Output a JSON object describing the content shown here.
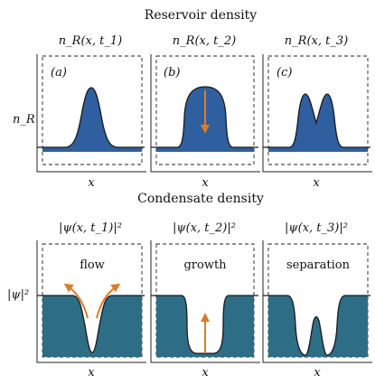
{
  "top_title": "Reservoir density",
  "bottom_title": "Condensate density",
  "reservoir": {
    "ylabel": "n_R",
    "panels": [
      {
        "header": "n_R(x, t_1)",
        "tag": "(a)",
        "xlabel": "x"
      },
      {
        "header": "n_R(x, t_2)",
        "tag": "(b)",
        "xlabel": "x"
      },
      {
        "header": "n_R(x, t_3)",
        "tag": "(c)",
        "xlabel": "x"
      }
    ]
  },
  "condensate": {
    "ylabel": "|ψ|²",
    "panels": [
      {
        "header": "|ψ(x, t_1)|²",
        "label": "flow",
        "xlabel": "x"
      },
      {
        "header": "|ψ(x, t_2)|²",
        "label": "growth",
        "xlabel": "x"
      },
      {
        "header": "|ψ(x, t_3)|²",
        "label": "separation",
        "xlabel": "x"
      }
    ]
  },
  "colors": {
    "reservoir_fill": "#2f5f9e",
    "condensate_fill": "#2e6d86",
    "arrow": "#e07b22"
  }
}
